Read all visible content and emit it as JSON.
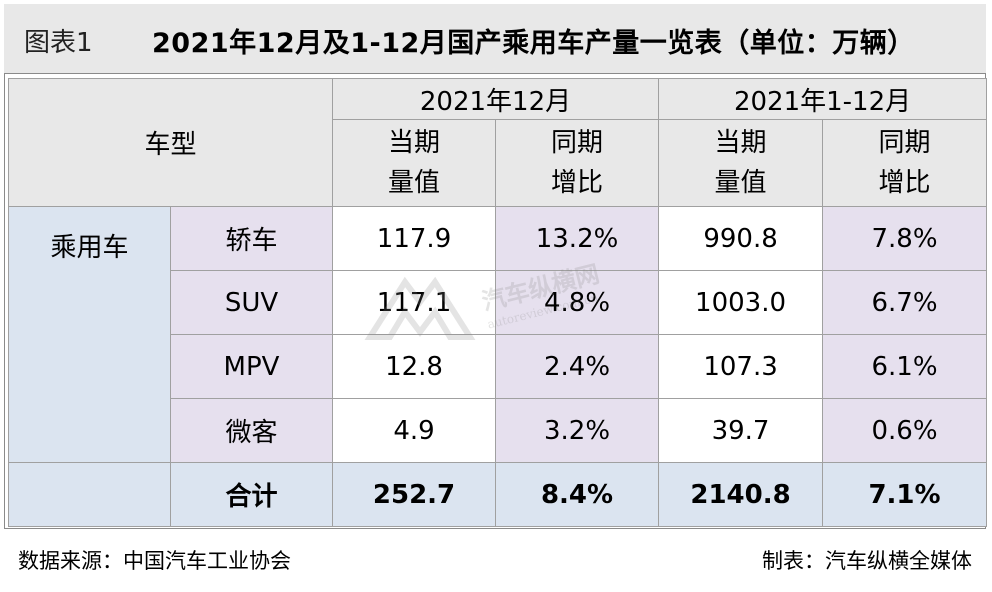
{
  "title": {
    "label": "图表1",
    "text": "2021年12月及1-12月国产乘用车产量一览表（单位：万辆）"
  },
  "header": {
    "type_label": "车型",
    "period1": "2021年12月",
    "period2": "2021年1-12月",
    "col_value_line1": "当期",
    "col_value_line2": "量值",
    "col_growth_line1": "同期",
    "col_growth_line2": "增比"
  },
  "category": "乘用车",
  "rows": [
    {
      "name": "轿车",
      "dec_value": "117.9",
      "dec_growth": "13.2%",
      "ytd_value": "990.8",
      "ytd_growth": "7.8%"
    },
    {
      "name": "SUV",
      "dec_value": "117.1",
      "dec_growth": "4.8%",
      "ytd_value": "1003.0",
      "ytd_growth": "6.7%"
    },
    {
      "name": "MPV",
      "dec_value": "12.8",
      "dec_growth": "2.4%",
      "ytd_value": "107.3",
      "ytd_growth": "6.1%"
    },
    {
      "name": "微客",
      "dec_value": "4.9",
      "dec_growth": "3.2%",
      "ytd_value": "39.7",
      "ytd_growth": "0.6%"
    }
  ],
  "total": {
    "name": "合计",
    "dec_value": "252.7",
    "dec_growth": "8.4%",
    "ytd_value": "2140.8",
    "ytd_growth": "7.1%"
  },
  "footer": {
    "source": "数据来源：中国汽车工业协会",
    "maker": "制表：汽车纵横全媒体"
  },
  "watermark": {
    "text": "汽车纵横网",
    "url": "autoreview.com.cn"
  }
}
